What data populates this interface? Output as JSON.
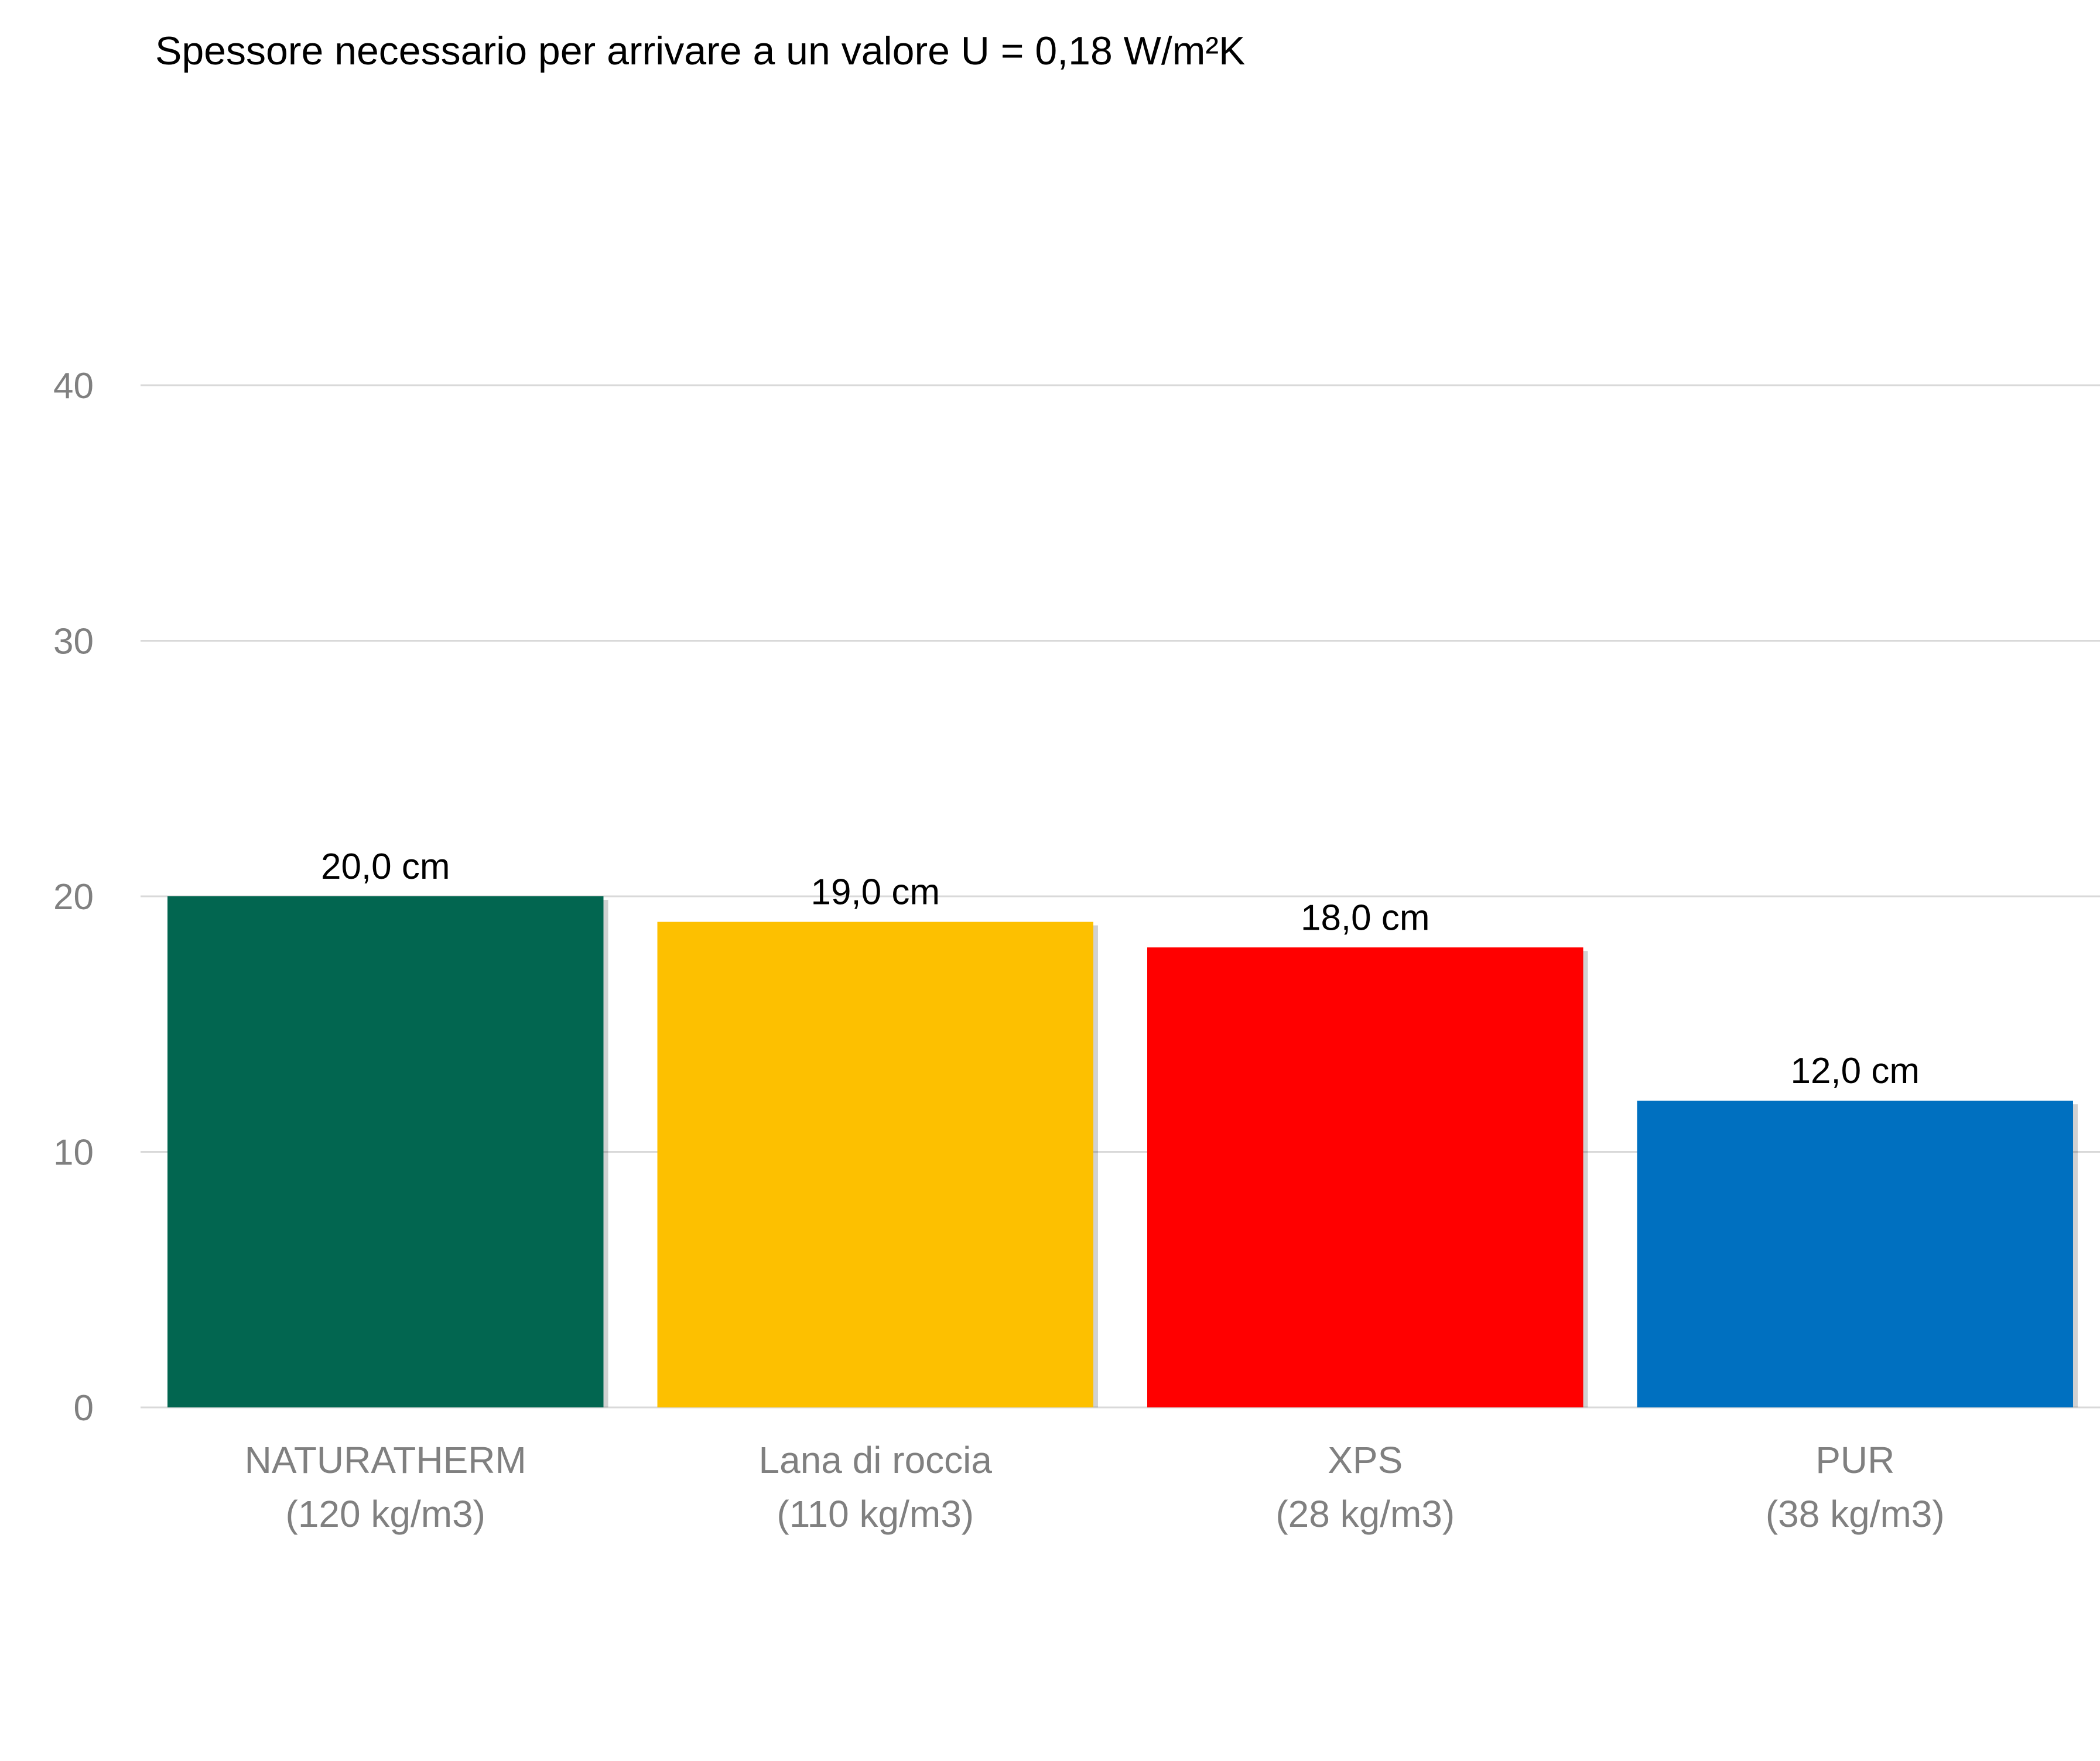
{
  "chart_data": {
    "type": "bar",
    "title": "Spessore necessario per arrivare a un valore U = 0,18 W/m²K",
    "categories": [
      [
        "NATURATHERM",
        "(120 kg/m3)"
      ],
      [
        "Lana di roccia",
        "(110 kg/m3)"
      ],
      [
        "XPS",
        "(28 kg/m3)"
      ],
      [
        "PUR",
        "(38 kg/m3)"
      ]
    ],
    "values": [
      20,
      19,
      18,
      12
    ],
    "data_labels": [
      "20,0 cm",
      "19,0 cm",
      "18,0 cm",
      "12,0 cm"
    ],
    "colors": [
      "#026650",
      "#fdc000",
      "#ff0000",
      "#0070c0"
    ],
    "ylim": [
      0,
      40
    ],
    "yticks": [
      0,
      10,
      20,
      30,
      40
    ],
    "ytick_labels": [
      "0",
      "10",
      "20",
      "30",
      "40"
    ],
    "grid": true,
    "legend": "none"
  }
}
